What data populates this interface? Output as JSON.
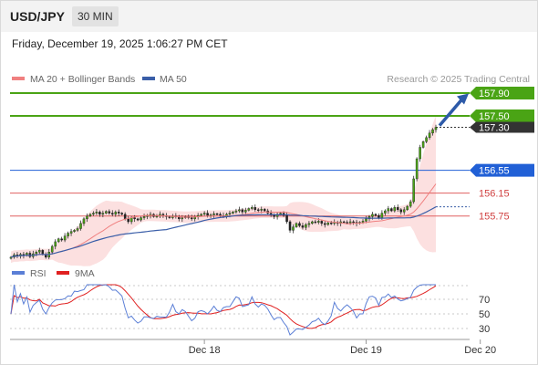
{
  "header": {
    "symbol": "USD/JPY",
    "interval": "30 MIN",
    "timestamp": "Friday, December 19, 2025 1:06:27 PM CET"
  },
  "legend": {
    "ma20_label": "MA 20 + Bollinger Bands",
    "ma50_label": "MA 50",
    "credit": "Research © 2025 Trading Central",
    "ma20_color": "#f08080",
    "ma50_color": "#3a5ea8"
  },
  "rsi_legend": {
    "rsi_label": "RSI",
    "ma_label": "9MA",
    "rsi_color": "#5b7fd6",
    "ma_color": "#e02020"
  },
  "chart_data": [
    {
      "type": "candlestick",
      "title": "",
      "ylim": [
        154.9,
        158.25
      ],
      "x_ticks": [
        {
          "label": "Dec 18",
          "index": 61
        },
        {
          "label": "Dec 19",
          "index": 112
        },
        {
          "label": "Dec 20",
          "index": 148
        }
      ],
      "last_price": "157.30",
      "levels": [
        {
          "value": 157.9,
          "label": "157.90",
          "kind": "resistance",
          "color": "#4aa415"
        },
        {
          "value": 157.5,
          "label": "157.50",
          "kind": "resistance",
          "color": "#4aa415"
        },
        {
          "value": 156.55,
          "label": "156.55",
          "kind": "pivot",
          "color": "#2160d6"
        },
        {
          "value": 156.15,
          "label": "156.15",
          "kind": "support",
          "color": "#e06060"
        },
        {
          "value": 155.75,
          "label": "155.75",
          "kind": "support",
          "color": "#e06060"
        }
      ],
      "closes": [
        155.03,
        155.07,
        155.05,
        155.08,
        155.06,
        155.1,
        155.04,
        155.09,
        155.12,
        155.15,
        155.08,
        155.03,
        155.12,
        155.22,
        155.3,
        155.35,
        155.33,
        155.4,
        155.45,
        155.48,
        155.5,
        155.53,
        155.62,
        155.7,
        155.75,
        155.78,
        155.8,
        155.82,
        155.78,
        155.8,
        155.83,
        155.8,
        155.78,
        155.82,
        155.8,
        155.78,
        155.7,
        155.65,
        155.72,
        155.7,
        155.68,
        155.72,
        155.74,
        155.76,
        155.78,
        155.74,
        155.75,
        155.78,
        155.76,
        155.74,
        155.72,
        155.75,
        155.74,
        155.7,
        155.72,
        155.74,
        155.72,
        155.7,
        155.74,
        155.76,
        155.78,
        155.8,
        155.76,
        155.77,
        155.79,
        155.78,
        155.76,
        155.75,
        155.78,
        155.8,
        155.82,
        155.84,
        155.86,
        155.82,
        155.85,
        155.88,
        155.9,
        155.86,
        155.85,
        155.87,
        155.84,
        155.8,
        155.77,
        155.74,
        155.78,
        155.8,
        155.76,
        155.65,
        155.5,
        155.56,
        155.62,
        155.58,
        155.55,
        155.6,
        155.62,
        155.65,
        155.64,
        155.66,
        155.62,
        155.6,
        155.63,
        155.62,
        155.64,
        155.62,
        155.65,
        155.64,
        155.63,
        155.65,
        155.64,
        155.62,
        155.64,
        155.66,
        155.7,
        155.74,
        155.78,
        155.76,
        155.72,
        155.8,
        155.84,
        155.88,
        155.84,
        155.9,
        155.86,
        155.82,
        155.86,
        155.92,
        156.0,
        156.4,
        156.75,
        156.95,
        157.05,
        157.12,
        157.2,
        157.26,
        157.3
      ],
      "ma20_color": "#f08080",
      "ma50_color": "#3a5ea8",
      "band_color": "#fbd5d5"
    },
    {
      "type": "line",
      "title": "RSI",
      "ylim": [
        20,
        90
      ],
      "y_ticks": [
        70,
        50,
        30
      ],
      "series": [
        {
          "name": "RSI",
          "color": "#5b7fd6"
        },
        {
          "name": "9MA",
          "color": "#e02020"
        }
      ]
    }
  ]
}
